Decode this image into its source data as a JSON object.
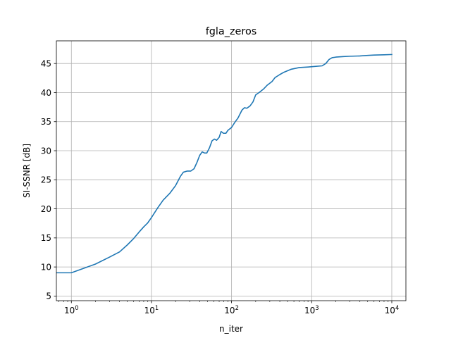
{
  "chart_data": {
    "type": "line",
    "title": "fgla_zeros",
    "xlabel": "n_iter",
    "ylabel": "SI-SSNR [dB]",
    "xscale": "log",
    "xlim": [
      0.65,
      15000
    ],
    "ylim": [
      4.2,
      48.9
    ],
    "grid": true,
    "x_ticks": [
      {
        "value": 1,
        "base": "10",
        "exp": "0"
      },
      {
        "value": 10,
        "base": "10",
        "exp": "1"
      },
      {
        "value": 100,
        "base": "10",
        "exp": "2"
      },
      {
        "value": 1000,
        "base": "10",
        "exp": "3"
      },
      {
        "value": 10000,
        "base": "10",
        "exp": "4"
      }
    ],
    "y_ticks": [
      {
        "value": 5,
        "label": "5"
      },
      {
        "value": 10,
        "label": "10"
      },
      {
        "value": 15,
        "label": "15"
      },
      {
        "value": 20,
        "label": "20"
      },
      {
        "value": 25,
        "label": "25"
      },
      {
        "value": 30,
        "label": "30"
      },
      {
        "value": 35,
        "label": "35"
      },
      {
        "value": 40,
        "label": "40"
      },
      {
        "value": 45,
        "label": "45"
      }
    ],
    "series": [
      {
        "color": "#1f77b4",
        "points": [
          [
            0.66,
            9.0
          ],
          [
            1,
            9.0
          ],
          [
            2,
            10.5
          ],
          [
            3,
            11.7
          ],
          [
            4,
            12.6
          ],
          [
            5,
            13.8
          ],
          [
            6,
            14.9
          ],
          [
            7,
            16.0
          ],
          [
            8,
            16.9
          ],
          [
            9,
            17.6
          ],
          [
            10,
            18.5
          ],
          [
            12,
            20.2
          ],
          [
            14,
            21.5
          ],
          [
            17,
            22.7
          ],
          [
            20,
            24.0
          ],
          [
            23,
            25.6
          ],
          [
            25,
            26.3
          ],
          [
            28,
            26.5
          ],
          [
            31,
            26.5
          ],
          [
            34,
            26.9
          ],
          [
            37,
            28.0
          ],
          [
            40,
            29.2
          ],
          [
            43,
            29.8
          ],
          [
            46,
            29.6
          ],
          [
            49,
            29.6
          ],
          [
            53,
            30.5
          ],
          [
            57,
            31.7
          ],
          [
            61,
            32.0
          ],
          [
            65,
            31.8
          ],
          [
            70,
            32.3
          ],
          [
            74,
            33.3
          ],
          [
            79,
            33.0
          ],
          [
            85,
            33.0
          ],
          [
            90,
            33.5
          ],
          [
            100,
            34.0
          ],
          [
            110,
            34.9
          ],
          [
            120,
            35.6
          ],
          [
            135,
            37.0
          ],
          [
            145,
            37.4
          ],
          [
            155,
            37.3
          ],
          [
            170,
            37.7
          ],
          [
            185,
            38.4
          ],
          [
            200,
            39.6
          ],
          [
            220,
            40.0
          ],
          [
            250,
            40.6
          ],
          [
            280,
            41.3
          ],
          [
            320,
            41.9
          ],
          [
            350,
            42.6
          ],
          [
            400,
            43.1
          ],
          [
            450,
            43.5
          ],
          [
            550,
            44.0
          ],
          [
            700,
            44.3
          ],
          [
            900,
            44.4
          ],
          [
            1100,
            44.5
          ],
          [
            1350,
            44.6
          ],
          [
            1500,
            45.0
          ],
          [
            1650,
            45.7
          ],
          [
            1800,
            46.0
          ],
          [
            2000,
            46.1
          ],
          [
            2500,
            46.2
          ],
          [
            3000,
            46.25
          ],
          [
            4000,
            46.3
          ],
          [
            5000,
            46.4
          ],
          [
            6000,
            46.45
          ],
          [
            8000,
            46.5
          ],
          [
            10000,
            46.55
          ]
        ]
      }
    ]
  }
}
